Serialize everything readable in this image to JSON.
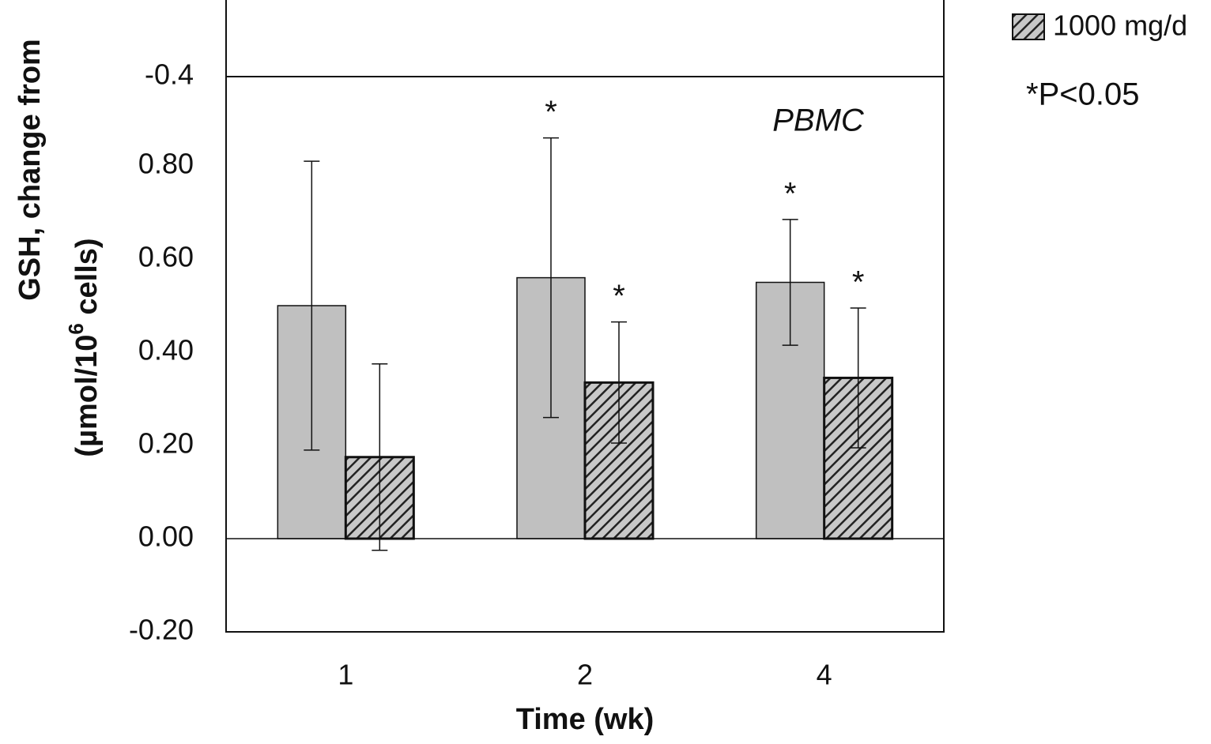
{
  "chart_data": {
    "type": "bar",
    "upper_panel_tick": "-0.4",
    "ylabel": [
      "GSH, change from",
      "(µmol/10",
      "6",
      " cells)"
    ],
    "xlabel": "Time (wk)",
    "categories": [
      "1",
      "2",
      "4"
    ],
    "series": [
      {
        "color": "#c0c0c0",
        "values": [
          0.5,
          0.56,
          0.55
        ],
        "errors": [
          0.31,
          0.3,
          0.135
        ],
        "marks": [
          null,
          "*",
          "*"
        ]
      },
      {
        "name": "1000 mg/d",
        "color": "#c0c0c0",
        "hatch": true,
        "values": [
          0.175,
          0.335,
          0.345
        ],
        "errors": [
          0.2,
          0.13,
          0.15
        ],
        "marks": [
          null,
          "*",
          "*"
        ]
      }
    ],
    "ylim": [
      -0.2,
      1.0
    ],
    "yticks": [
      {
        "value": -0.2,
        "label": "-0.20"
      },
      {
        "value": 0,
        "label": "0.00"
      },
      {
        "value": 0.2,
        "label": "0.20"
      },
      {
        "value": 0.4,
        "label": "0.40"
      },
      {
        "value": 0.6,
        "label": "0.60"
      },
      {
        "value": 0.8,
        "label": "0.80"
      }
    ],
    "annotation": "PBMC",
    "note": "*P<0.05",
    "grid": false
  }
}
